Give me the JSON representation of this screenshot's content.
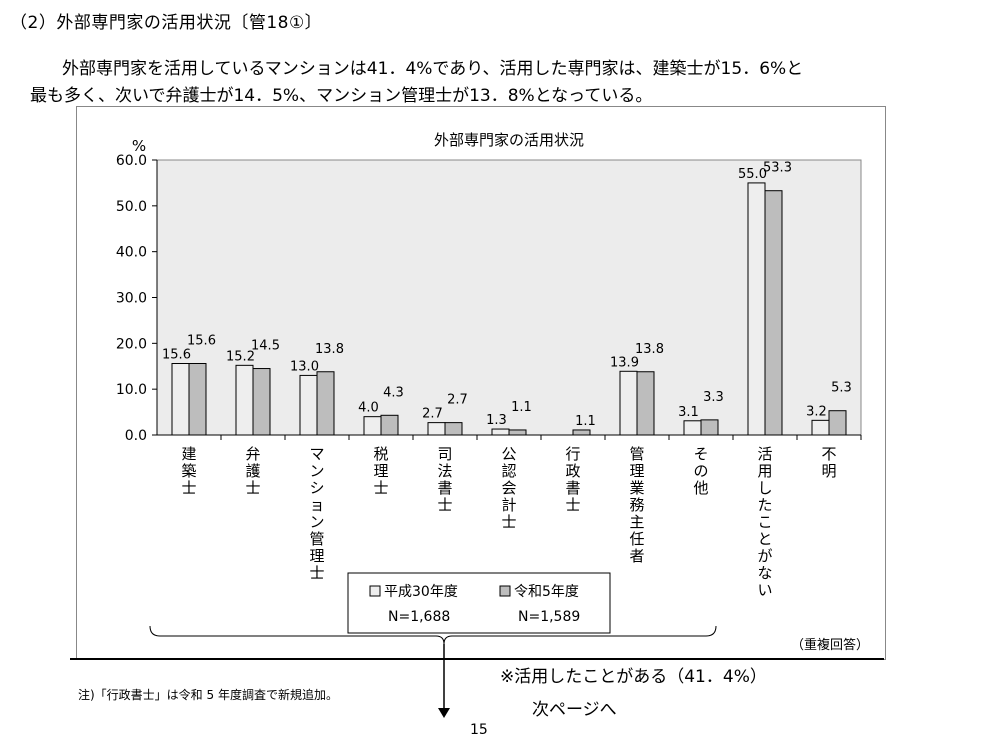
{
  "heading": "（2）外部専門家の活用状況〔管18①〕",
  "intro": {
    "line1": "外部専門家を活用しているマンションは41．4%であり、活用した専門家は、建築士が15．6%と",
    "line2": "最も多く、次いで弁護士が14．5%、マンション管理士が13．8%となっている。"
  },
  "chart_data": {
    "type": "bar",
    "title": "外部専門家の活用状況",
    "ylabel": "%",
    "ylim": [
      0,
      60
    ],
    "yticks": [
      "0.0",
      "10.0",
      "20.0",
      "30.0",
      "40.0",
      "50.0",
      "60.0"
    ],
    "grid": false,
    "categories": [
      "建築士",
      "弁護士",
      "マンション管理士",
      "税理士",
      "司法書士",
      "公認会計士",
      "行政書士",
      "管理業務主任者",
      "その他",
      "活用したことがない",
      "不明"
    ],
    "series": [
      {
        "name": "平成30年度",
        "n_label": "N=1,688",
        "color": "#eeeeee",
        "values": [
          15.6,
          15.2,
          13.0,
          4.0,
          2.7,
          1.3,
          null,
          13.9,
          3.1,
          55.0,
          3.2
        ],
        "labels": [
          "15.6",
          "15.2",
          "13.0",
          "4.0",
          "2.7",
          "1.3",
          "",
          "13.9",
          "3.1",
          "55.0",
          "3.2"
        ]
      },
      {
        "name": "令和5年度",
        "n_label": "N=1,589",
        "color": "#bdbdbd",
        "values": [
          15.6,
          14.5,
          13.8,
          4.3,
          2.7,
          1.1,
          1.1,
          13.8,
          3.3,
          53.3,
          5.3
        ],
        "labels": [
          "15.6",
          "14.5",
          "13.8",
          "4.3",
          "2.7",
          "1.1",
          "1.1",
          "13.8",
          "3.3",
          "53.3",
          "5.3"
        ]
      }
    ],
    "legend_position": "bottom-center",
    "note_multiple": "（重複回答）"
  },
  "callout": "※活用したことがある（41．4%）",
  "next_page": "次ページへ",
  "footnote": "注)「行政書士」は令和 5 年度調査で新規追加。",
  "page_number": "15"
}
